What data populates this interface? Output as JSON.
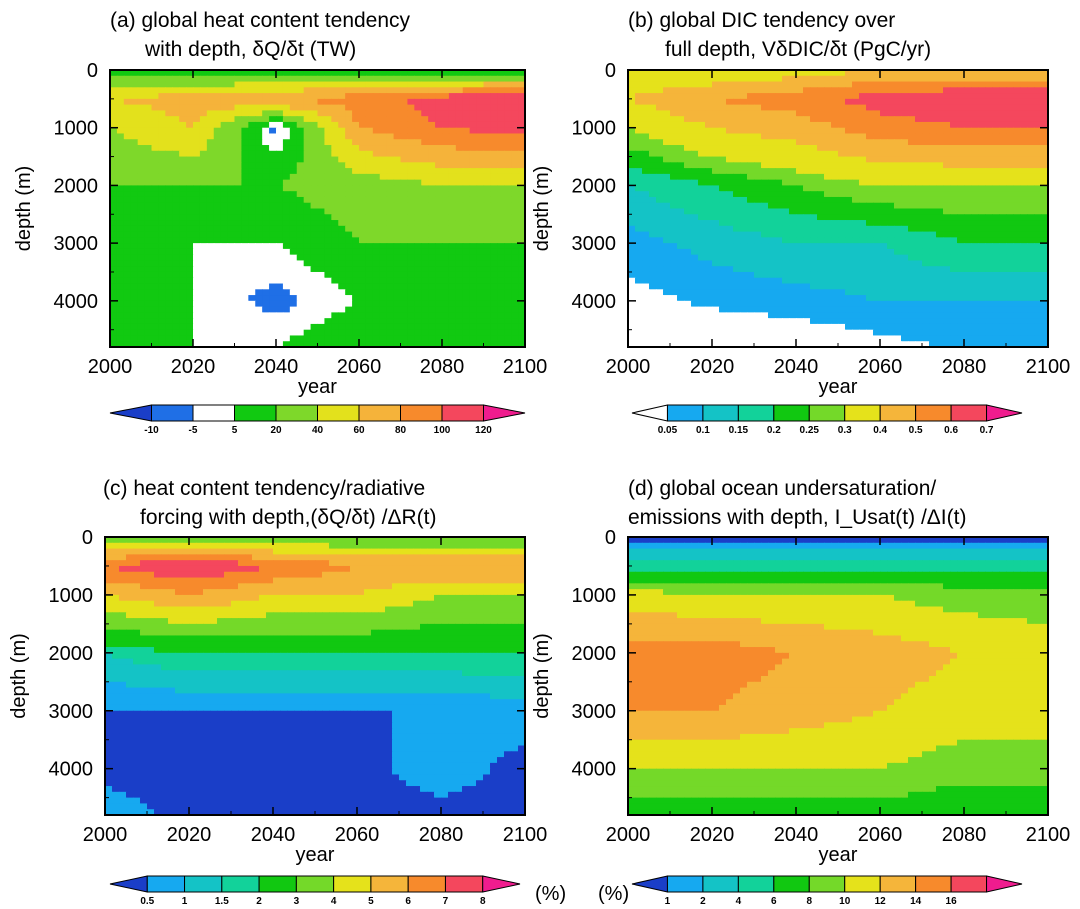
{
  "colors": {
    "heat": [
      "#1a3ec8",
      "#1f6fe6",
      "#ffffff",
      "#11c911",
      "#7ed82a",
      "#e3e11c",
      "#f5b33a",
      "#f78a2c",
      "#f4475d",
      "#ef1c8e"
    ],
    "dic": [
      "#ffffff",
      "#16a9f0",
      "#14c3c6",
      "#12d29a",
      "#11c811",
      "#74d929",
      "#e5e21b",
      "#f5b53a",
      "#f78a2c",
      "#f4475d",
      "#ef1c8e"
    ],
    "ratio": [
      "#1a3ec8",
      "#16a9f0",
      "#14c3c6",
      "#12d29a",
      "#11c811",
      "#74d929",
      "#e5e21b",
      "#f5b53a",
      "#f78a2c",
      "#f4475d",
      "#ef1c8e"
    ],
    "usat": [
      "#1a3ec8",
      "#16a9f0",
      "#14c3c6",
      "#12d29a",
      "#11c811",
      "#74d929",
      "#e5e21b",
      "#f5b53a",
      "#f78a2c",
      "#f4475d",
      "#ef1c8e"
    ]
  },
  "chart_data": [
    {
      "type": "heatmap",
      "id": "a",
      "title_line1": "(a) global heat content tendency",
      "title_line2": "with depth,  δQ/δt (TW)",
      "xlabel": "year",
      "ylabel": "depth (m)",
      "xlim": [
        2000,
        2100
      ],
      "ylim": [
        0,
        4800
      ],
      "y_inverted": true,
      "x_ticks": [
        "2000",
        "2020",
        "2040",
        "2060",
        "2080",
        "2100"
      ],
      "y_ticks": [
        "0",
        "1000",
        "2000",
        "3000",
        "4000"
      ],
      "colorbar_ticks": [
        "-10",
        "-5",
        "5",
        "20",
        "40",
        "60",
        "80",
        "100",
        "120"
      ],
      "colorbar_unit": "",
      "palette": "heat",
      "x": [
        2000,
        2020,
        2040,
        2060,
        2080,
        2100
      ],
      "depth": [
        0,
        500,
        1000,
        2000,
        3000,
        4000,
        4800
      ],
      "z": [
        [
          5,
          5,
          5,
          5,
          5,
          5
        ],
        [
          60,
          70,
          80,
          90,
          110,
          120
        ],
        [
          40,
          60,
          -10,
          80,
          100,
          110
        ],
        [
          20,
          20,
          20,
          30,
          40,
          40
        ],
        [
          5,
          5,
          5,
          20,
          20,
          20
        ],
        [
          5,
          5,
          -10,
          5,
          5,
          20
        ],
        [
          5,
          5,
          5,
          20,
          20,
          20
        ]
      ]
    },
    {
      "type": "heatmap",
      "id": "b",
      "title_line1": "(b) global DIC tendency over",
      "title_line2": "full depth, VδDIC/δt (PgC/yr)",
      "xlabel": "year",
      "ylabel": "depth (m)",
      "xlim": [
        2000,
        2100
      ],
      "ylim": [
        0,
        4800
      ],
      "y_inverted": true,
      "x_ticks": [
        "2000",
        "2020",
        "2040",
        "2060",
        "2080",
        "2100"
      ],
      "y_ticks": [
        "0",
        "1000",
        "2000",
        "3000",
        "4000"
      ],
      "colorbar_ticks": [
        "0.05",
        "0.1",
        "0.15",
        "0.2",
        "0.25",
        "0.3",
        "0.4",
        "0.5",
        "0.6",
        "0.7"
      ],
      "colorbar_unit": "",
      "palette": "dic",
      "x": [
        2000,
        2020,
        2040,
        2060,
        2080,
        2100
      ],
      "depth": [
        0,
        500,
        1000,
        2000,
        3000,
        4000,
        4800
      ],
      "z": [
        [
          0.3,
          0.3,
          0.35,
          0.4,
          0.4,
          0.4
        ],
        [
          0.4,
          0.5,
          0.55,
          0.65,
          0.7,
          0.7
        ],
        [
          0.3,
          0.4,
          0.45,
          0.55,
          0.6,
          0.6
        ],
        [
          0.15,
          0.2,
          0.25,
          0.3,
          0.3,
          0.3
        ],
        [
          0.08,
          0.12,
          0.15,
          0.15,
          0.2,
          0.2
        ],
        [
          0.03,
          0.06,
          0.08,
          0.1,
          0.1,
          0.1
        ],
        [
          0.0,
          0.0,
          0.0,
          0.03,
          0.06,
          0.07
        ]
      ]
    },
    {
      "type": "heatmap",
      "id": "c",
      "title_line1": "(c) heat content tendency/radiative",
      "title_line2": "forcing with depth,(δQ/δt) /ΔR(t)",
      "xlabel": "year",
      "ylabel": "depth (m)",
      "xlim": [
        2000,
        2100
      ],
      "ylim": [
        0,
        4800
      ],
      "y_inverted": true,
      "x_ticks": [
        "2000",
        "2020",
        "2040",
        "2060",
        "2080",
        "2100"
      ],
      "y_ticks": [
        "0",
        "1000",
        "2000",
        "3000",
        "4000"
      ],
      "colorbar_ticks": [
        "0.5",
        "1",
        "1.5",
        "2",
        "3",
        "4",
        "5",
        "6",
        "7",
        "8"
      ],
      "colorbar_unit": "(%)",
      "palette": "ratio",
      "x": [
        2000,
        2020,
        2040,
        2060,
        2080,
        2100
      ],
      "depth": [
        0,
        500,
        1000,
        2000,
        3000,
        4000,
        4800
      ],
      "z": [
        [
          3,
          3,
          3,
          3,
          3,
          3
        ],
        [
          7,
          8,
          7,
          6,
          6,
          6
        ],
        [
          5,
          6,
          5,
          5,
          4,
          4
        ],
        [
          1.5,
          2,
          2,
          2,
          2,
          2
        ],
        [
          0.5,
          0.5,
          0.5,
          0.5,
          0.5,
          0.8
        ],
        [
          0.3,
          0.3,
          0.3,
          0.3,
          0.8,
          0.3
        ],
        [
          0.8,
          0.3,
          0.3,
          0.3,
          0.3,
          0.3
        ]
      ]
    },
    {
      "type": "heatmap",
      "id": "d",
      "title_line1": "(d) global ocean undersaturation/",
      "title_line2": "emissions with depth,  I_Usat(t) /ΔI(t)",
      "xlabel": "year",
      "ylabel": "depth (m)",
      "xlim": [
        2000,
        2100
      ],
      "ylim": [
        0,
        4800
      ],
      "y_inverted": true,
      "x_ticks": [
        "2000",
        "2020",
        "2040",
        "2060",
        "2080",
        "2100"
      ],
      "y_ticks": [
        "0",
        "1000",
        "2000",
        "3000",
        "4000"
      ],
      "colorbar_ticks": [
        "1",
        "2",
        "4",
        "6",
        "8",
        "10",
        "12",
        "14",
        "16"
      ],
      "colorbar_unit": "(%)",
      "palette": "usat",
      "x": [
        2000,
        2020,
        2040,
        2060,
        2080,
        2100
      ],
      "depth": [
        0,
        500,
        1000,
        2000,
        3000,
        4000,
        4800
      ],
      "z": [
        [
          0.5,
          0.5,
          0.5,
          0.5,
          0.5,
          0.5
        ],
        [
          5,
          5,
          5,
          5,
          5,
          5
        ],
        [
          11,
          10,
          10,
          10,
          9,
          9
        ],
        [
          15,
          15,
          14,
          13,
          12,
          11
        ],
        [
          14,
          14,
          13,
          12,
          11,
          11
        ],
        [
          10,
          10,
          10,
          10,
          9,
          9
        ],
        [
          7,
          7,
          7,
          7,
          6,
          6
        ]
      ]
    }
  ]
}
